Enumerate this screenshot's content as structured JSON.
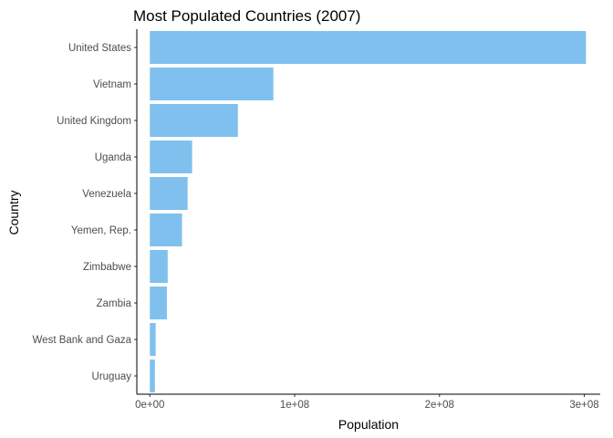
{
  "chart_data": {
    "type": "bar",
    "orientation": "horizontal",
    "title": "Most Populated Countries (2007)",
    "xlabel": "Population",
    "ylabel": "Country",
    "categories": [
      "United States",
      "Vietnam",
      "United Kingdom",
      "Uganda",
      "Venezuela",
      "Yemen, Rep.",
      "Zimbabwe",
      "Zambia",
      "West Bank and Gaza",
      "Uruguay"
    ],
    "values": [
      301139947,
      85262356,
      60776238,
      29170398,
      26084662,
      22211743,
      12311143,
      11746035,
      4018332,
      3447496
    ],
    "xlim": [
      -9000000,
      311000000
    ],
    "x_ticks": [
      0,
      100000000,
      200000000,
      300000000
    ],
    "x_tick_labels": [
      "0e+00",
      "1e+08",
      "2e+08",
      "3e+08"
    ],
    "bar_color": "#7fc0ee",
    "grid": false,
    "legend": "none"
  }
}
